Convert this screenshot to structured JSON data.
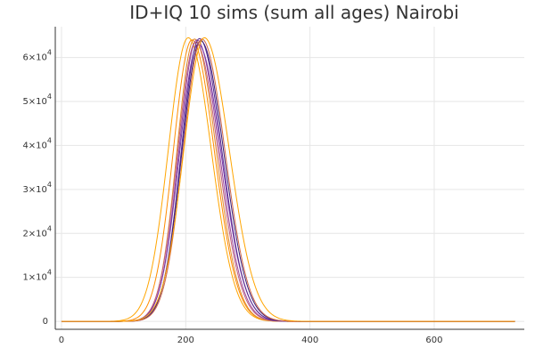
{
  "chart_data": {
    "type": "line",
    "title": "ID+IQ 10 sims (sum all ages) Nairobi",
    "xlabel": "",
    "ylabel": "",
    "xlim": [
      -10,
      745
    ],
    "ylim": [
      -1800,
      67000
    ],
    "grid": true,
    "legend": "none",
    "x_ticks": [
      0,
      200,
      400,
      600
    ],
    "x_tick_labels": [
      "0",
      "200",
      "400",
      "600"
    ],
    "y_ticks": [
      0,
      10000,
      20000,
      30000,
      40000,
      50000,
      60000
    ],
    "y_tick_labels": [
      {
        "mant": "0",
        "exp": ""
      },
      {
        "mant": "1×10",
        "exp": "4"
      },
      {
        "mant": "2×10",
        "exp": "4"
      },
      {
        "mant": "3×10",
        "exp": "4"
      },
      {
        "mant": "4×10",
        "exp": "4"
      },
      {
        "mant": "5×10",
        "exp": "4"
      },
      {
        "mant": "6×10",
        "exp": "4"
      }
    ],
    "x_range": [
      0,
      730
    ],
    "series": [
      {
        "peak_x": 204,
        "peak_y": 64500,
        "width_rise": 32,
        "width_fall": 37,
        "color": "#ffa500"
      },
      {
        "peak_x": 210,
        "peak_y": 64000,
        "width_rise": 30,
        "width_fall": 36,
        "color": "#ff8c00"
      },
      {
        "peak_x": 214,
        "peak_y": 64200,
        "width_rise": 28,
        "width_fall": 35,
        "color": "#e08a2f"
      },
      {
        "peak_x": 216,
        "peak_y": 63500,
        "width_rise": 29,
        "width_fall": 36,
        "color": "#c0607f"
      },
      {
        "peak_x": 218,
        "peak_y": 64000,
        "width_rise": 29,
        "width_fall": 36,
        "color": "#9a4a9a"
      },
      {
        "peak_x": 220,
        "peak_y": 63000,
        "width_rise": 30,
        "width_fall": 37,
        "color": "#7a3aa8"
      },
      {
        "peak_x": 222,
        "peak_y": 64300,
        "width_rise": 29,
        "width_fall": 36,
        "color": "#5a2a90"
      },
      {
        "peak_x": 224,
        "peak_y": 63800,
        "width_rise": 30,
        "width_fall": 37,
        "color": "#3a1f7a"
      },
      {
        "peak_x": 226,
        "peak_y": 64200,
        "width_rise": 30,
        "width_fall": 37,
        "color": "#d06a4a"
      },
      {
        "peak_x": 230,
        "peak_y": 64500,
        "width_rise": 33,
        "width_fall": 40,
        "color": "#ffa500"
      }
    ]
  }
}
